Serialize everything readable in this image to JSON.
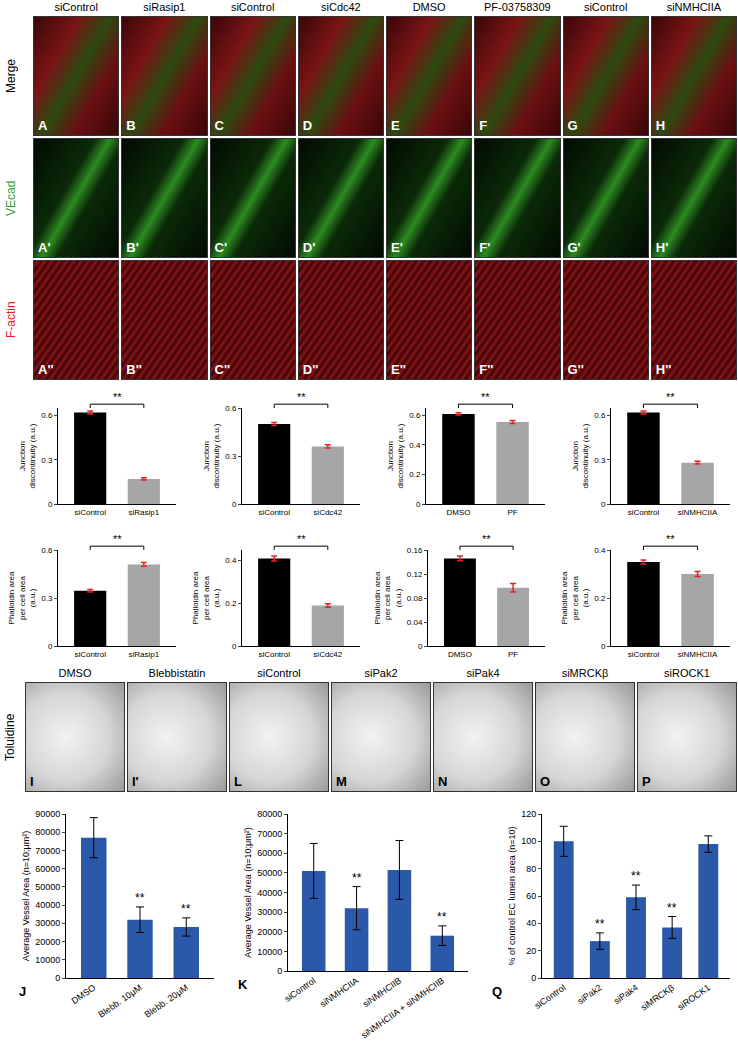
{
  "image_panels": {
    "columns": [
      "siControl",
      "siRasip1",
      "siControl",
      "siCdc42",
      "DMSO",
      "PF-03758309",
      "siControl",
      "siNMHCIIA"
    ],
    "rows": [
      {
        "label": "Merge",
        "color": "#000000",
        "panels": [
          "A",
          "B",
          "C",
          "D",
          "E",
          "F",
          "G",
          "H"
        ]
      },
      {
        "label": "VEcad",
        "color": "#2ca02c",
        "panels": [
          "A'",
          "B'",
          "C'",
          "D'",
          "E'",
          "F'",
          "G'",
          "H'"
        ]
      },
      {
        "label": "F-actin",
        "color": "#e02020",
        "panels": [
          "A''",
          "B''",
          "C''",
          "D''",
          "E''",
          "F''",
          "G''",
          "H''"
        ]
      }
    ],
    "stain_label": "Toluidine",
    "toluidine_panels": [
      {
        "label": "I",
        "title": "DMSO"
      },
      {
        "label": "I'",
        "title": "Blebbistatin"
      },
      {
        "label": "L",
        "title": "siControl"
      },
      {
        "label": "M",
        "title": "siPak2"
      },
      {
        "label": "N",
        "title": "siPak4"
      },
      {
        "label": "O",
        "title": "siMRCKβ"
      },
      {
        "label": "P",
        "title": "siROCK1"
      }
    ]
  },
  "chart_data": [
    {
      "type": "bar",
      "ylabel": [
        "Junction",
        "discontinuity (a.u.)"
      ],
      "categories": [
        "siControl",
        "siRasip1"
      ],
      "values": [
        0.62,
        0.17
      ],
      "errors": [
        0.01,
        0.008
      ],
      "colors": [
        "#000000",
        "#a6a6a6"
      ],
      "ylim": [
        0,
        0.65
      ],
      "yticks": [
        0,
        0.3,
        0.6
      ],
      "grid": false,
      "annotations": [
        {
          "text": "**",
          "categories": [
            "siControl",
            "siRasip1"
          ]
        }
      ]
    },
    {
      "type": "bar",
      "ylabel": [
        "Junction",
        "discontinuity (a.u.)"
      ],
      "categories": [
        "siControl",
        "siCdc42"
      ],
      "values": [
        0.5,
        0.36
      ],
      "errors": [
        0.01,
        0.01
      ],
      "colors": [
        "#000000",
        "#a6a6a6"
      ],
      "ylim": [
        0,
        0.6
      ],
      "yticks": [
        0,
        0.3,
        0.6
      ],
      "grid": false,
      "annotations": [
        {
          "text": "**",
          "categories": [
            "siControl",
            "siCdc42"
          ]
        }
      ]
    },
    {
      "type": "bar",
      "ylabel": [
        "Junction",
        "discontinuity (a.u.)"
      ],
      "categories": [
        "DMSO",
        "PF"
      ],
      "values": [
        0.61,
        0.555
      ],
      "errors": [
        0.008,
        0.01
      ],
      "colors": [
        "#000000",
        "#a6a6a6"
      ],
      "ylim": [
        0,
        0.65
      ],
      "yticks": [
        0,
        0.2,
        0.4,
        0.6
      ],
      "grid": false,
      "annotations": [
        {
          "text": "**",
          "categories": [
            "DMSO",
            "PF"
          ]
        }
      ]
    },
    {
      "type": "bar",
      "ylabel": [
        "Junction",
        "discontinuity (a.u.)"
      ],
      "categories": [
        "siControl",
        "siNMHCIIA"
      ],
      "values": [
        0.62,
        0.28
      ],
      "errors": [
        0.01,
        0.01
      ],
      "colors": [
        "#000000",
        "#a6a6a6"
      ],
      "ylim": [
        0,
        0.65
      ],
      "yticks": [
        0,
        0.3,
        0.6
      ],
      "grid": false,
      "annotations": [
        {
          "text": "**",
          "categories": [
            "siControl",
            "siNMHCIIA"
          ]
        }
      ]
    },
    {
      "type": "bar",
      "ylabel": [
        "Phalloidin area",
        "per cell area",
        "(a.u.)"
      ],
      "categories": [
        "siControl",
        "siRasip1"
      ],
      "values": [
        0.345,
        0.51
      ],
      "errors": [
        0.008,
        0.012
      ],
      "colors": [
        "#000000",
        "#a6a6a6"
      ],
      "ylim": [
        0,
        0.6
      ],
      "yticks": [
        0,
        0.3,
        0.6
      ],
      "grid": false,
      "annotations": [
        {
          "text": "**",
          "categories": [
            "siControl",
            "siRasip1"
          ]
        }
      ]
    },
    {
      "type": "bar",
      "ylabel": [
        "Phalloidin area",
        "per cell area",
        "(a.u.)"
      ],
      "categories": [
        "siControl",
        "siCdc42"
      ],
      "values": [
        0.41,
        0.19
      ],
      "errors": [
        0.012,
        0.008
      ],
      "colors": [
        "#000000",
        "#a6a6a6"
      ],
      "ylim": [
        0,
        0.45
      ],
      "yticks": [
        0,
        0.2,
        0.4
      ],
      "grid": false,
      "annotations": [
        {
          "text": "**",
          "categories": [
            "siControl",
            "siCdc42"
          ]
        }
      ]
    },
    {
      "type": "bar",
      "ylabel": [
        "Phalloidin area",
        "per cell area",
        "(a.u.)"
      ],
      "categories": [
        "DMSO",
        "PF"
      ],
      "values": [
        0.146,
        0.097
      ],
      "errors": [
        0.004,
        0.007
      ],
      "colors": [
        "#000000",
        "#a6a6a6"
      ],
      "ylim": [
        0,
        0.16
      ],
      "yticks": [
        0,
        0.04,
        0.08,
        0.12,
        0.16
      ],
      "grid": false,
      "annotations": [
        {
          "text": "**",
          "categories": [
            "DMSO",
            "PF"
          ]
        }
      ]
    },
    {
      "type": "bar",
      "ylabel": [
        "Phalloidin area",
        "per cell area",
        "(a.u.)"
      ],
      "categories": [
        "siControl",
        "siNMHCIIA"
      ],
      "values": [
        0.35,
        0.3
      ],
      "errors": [
        0.008,
        0.01
      ],
      "colors": [
        "#000000",
        "#a6a6a6"
      ],
      "ylim": [
        0,
        0.4
      ],
      "yticks": [
        0,
        0.2,
        0.4
      ],
      "grid": false,
      "annotations": [
        {
          "text": "**",
          "categories": [
            "siControl",
            "siNMHCIIA"
          ]
        }
      ]
    },
    {
      "type": "bar",
      "panel": "J",
      "ylabel": [
        "Average Vessel Area (n=10;μm²)"
      ],
      "categories": [
        "DMSO",
        "Blebb. 10μM",
        "Blebb. 20μM"
      ],
      "values": [
        77000,
        32000,
        28000
      ],
      "errors": [
        11000,
        7000,
        5000
      ],
      "color": "#2b58a8",
      "ylim": [
        0,
        90000
      ],
      "yticks": [
        0,
        10000,
        20000,
        30000,
        40000,
        50000,
        60000,
        70000,
        80000,
        90000
      ],
      "grid": false,
      "annotations": [
        {
          "text": "**",
          "category": "Blebb. 10μM"
        },
        {
          "text": "**",
          "category": "Blebb. 20μM"
        }
      ]
    },
    {
      "type": "bar",
      "panel": "K",
      "ylabel": [
        "Average Vessel Area (n=10;μm²)"
      ],
      "categories": [
        "siControl",
        "siNMHCIIA",
        "siNMHCIIB",
        "siNMHCIIA + siNMHCIIB"
      ],
      "values": [
        51000,
        32000,
        51500,
        18000
      ],
      "errors": [
        14000,
        11000,
        15000,
        5000
      ],
      "color": "#2b58a8",
      "ylim": [
        0,
        80000
      ],
      "yticks": [
        0,
        10000,
        20000,
        30000,
        40000,
        50000,
        60000,
        70000,
        80000
      ],
      "grid": false,
      "annotations": [
        {
          "text": "**",
          "category": "siNMHCIIA"
        },
        {
          "text": "**",
          "category": "siNMHCIIA + siNMHCIIB"
        }
      ]
    },
    {
      "type": "bar",
      "panel": "Q",
      "ylabel": [
        "% of control EC lumen area (n=10)"
      ],
      "categories": [
        "siControl",
        "siPak2",
        "siPak4",
        "siMRCKβ",
        "siROCK1"
      ],
      "values": [
        100,
        27,
        59,
        37,
        98
      ],
      "errors": [
        11,
        6,
        9,
        8,
        6
      ],
      "color": "#2b58a8",
      "ylim": [
        0,
        120
      ],
      "yticks": [
        0,
        20,
        40,
        60,
        80,
        100,
        120
      ],
      "grid": false,
      "annotations": [
        {
          "text": "**",
          "category": "siPak2"
        },
        {
          "text": "**",
          "category": "siPak4"
        },
        {
          "text": "**",
          "category": "siMRCKβ"
        }
      ]
    }
  ]
}
